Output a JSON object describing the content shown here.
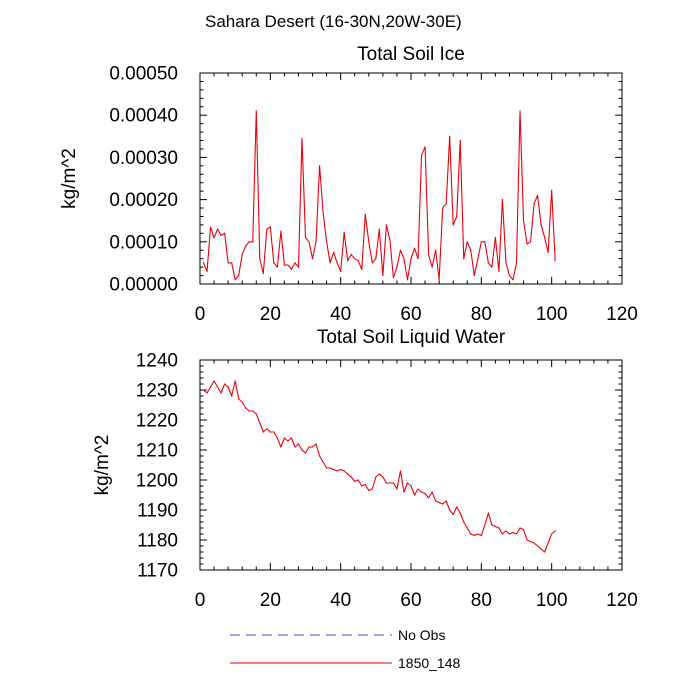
{
  "page_title": "Sahara Desert (16-30N,20W-30E)",
  "colors": {
    "series": "#e8000b",
    "no_obs": "#4a4ad0",
    "axis": "#000000"
  },
  "legend": [
    {
      "label": "No Obs",
      "style": "dashed",
      "color": "#4a4ad0"
    },
    {
      "label": "1850_148",
      "style": "solid",
      "color": "#e8000b"
    }
  ],
  "chart_data": [
    {
      "type": "line",
      "title": "Total Soil Ice",
      "xlabel": "",
      "ylabel": "kg/m^2",
      "xlim": [
        0,
        120
      ],
      "ylim": [
        0,
        0.0005
      ],
      "xticks": [
        0,
        20,
        40,
        60,
        80,
        100,
        120
      ],
      "xtick_labels": [
        "0",
        "20",
        "40",
        "60",
        "80",
        "100",
        "120"
      ],
      "yticks": [
        0,
        0.0001,
        0.0002,
        0.0003,
        0.0004,
        0.0005
      ],
      "ytick_labels": [
        "0.00000",
        "0.00010",
        "0.00020",
        "0.00030",
        "0.00040",
        "0.00050"
      ],
      "grid": false,
      "series": [
        {
          "name": "1850_148",
          "x": [
            1,
            2,
            3,
            4,
            5,
            6,
            7,
            8,
            9,
            10,
            11,
            12,
            13,
            14,
            15,
            16,
            17,
            18,
            19,
            20,
            21,
            22,
            23,
            24,
            25,
            26,
            27,
            28,
            29,
            30,
            31,
            32,
            33,
            34,
            35,
            36,
            37,
            38,
            39,
            40,
            41,
            42,
            43,
            44,
            45,
            46,
            47,
            48,
            49,
            50,
            51,
            52,
            53,
            54,
            55,
            56,
            57,
            58,
            59,
            60,
            61,
            62,
            63,
            64,
            65,
            66,
            67,
            68,
            69,
            70,
            71,
            72,
            73,
            74,
            75,
            76,
            77,
            78,
            79,
            80,
            81,
            82,
            83,
            84,
            85,
            86,
            87,
            88,
            89,
            90,
            91,
            92,
            93,
            94,
            95,
            96,
            97,
            98,
            99,
            100,
            101
          ],
          "y": [
            5e-05,
            3e-05,
            0.000135,
            0.00011,
            0.00013,
            0.000115,
            0.00012,
            5e-05,
            5e-05,
            1e-05,
            2e-05,
            7e-05,
            9e-05,
            0.0001,
            0.0001,
            0.00041,
            6e-05,
            2.5e-05,
            0.00013,
            0.000135,
            5e-05,
            4e-05,
            0.000125,
            4.5e-05,
            4.5e-05,
            3.5e-05,
            5e-05,
            4e-05,
            0.000345,
            0.00011,
            0.0001,
            6e-05,
            0.0001,
            0.00028,
            0.00017,
            0.0001,
            5e-05,
            7.5e-05,
            5e-05,
            3e-05,
            0.000122,
            5.5e-05,
            7e-05,
            6e-05,
            5.5e-05,
            3.5e-05,
            0.000165,
            0.0001,
            5e-05,
            6e-05,
            0.00013,
            2e-05,
            0.00014,
            0.000105,
            1.5e-05,
            4e-05,
            8e-05,
            6e-05,
            1e-05,
            6e-05,
            8.5e-05,
            6e-05,
            0.000305,
            0.000325,
            7e-05,
            4e-05,
            8e-05,
            1e-05,
            0.00018,
            0.00019,
            0.00035,
            0.00014,
            0.00016,
            0.00034,
            6e-05,
            0.0001,
            8e-05,
            2e-05,
            6e-05,
            0.0001,
            0.0001,
            5e-05,
            4e-05,
            0.00011,
            3e-05,
            0.0002,
            5e-05,
            2e-05,
            1e-05,
            5e-05,
            0.00041,
            0.00015,
            9.5e-05,
            0.0001,
            0.00019,
            0.00021,
            0.00014,
            0.00011,
            7.5e-05,
            0.000222,
            5.5e-05
          ]
        }
      ]
    },
    {
      "type": "line",
      "title": "Total Soil Liquid Water",
      "xlabel": "",
      "ylabel": "kg/m^2",
      "xlim": [
        0,
        120
      ],
      "ylim": [
        1170,
        1240
      ],
      "xticks": [
        0,
        20,
        40,
        60,
        80,
        100,
        120
      ],
      "xtick_labels": [
        "0",
        "20",
        "40",
        "60",
        "80",
        "100",
        "120"
      ],
      "yticks": [
        1170,
        1180,
        1190,
        1200,
        1210,
        1220,
        1230,
        1240
      ],
      "ytick_labels": [
        "1170",
        "1180",
        "1190",
        "1200",
        "1210",
        "1220",
        "1230",
        "1240"
      ],
      "grid": false,
      "series": [
        {
          "name": "1850_148",
          "x": [
            1,
            2,
            3,
            4,
            5,
            6,
            7,
            8,
            9,
            10,
            11,
            12,
            13,
            14,
            15,
            16,
            17,
            18,
            19,
            20,
            21,
            22,
            23,
            24,
            25,
            26,
            27,
            28,
            29,
            30,
            31,
            32,
            33,
            34,
            35,
            36,
            37,
            38,
            39,
            40,
            41,
            42,
            43,
            44,
            45,
            46,
            47,
            48,
            49,
            50,
            51,
            52,
            53,
            54,
            55,
            56,
            57,
            58,
            59,
            60,
            61,
            62,
            63,
            64,
            65,
            66,
            67,
            68,
            69,
            70,
            71,
            72,
            73,
            74,
            75,
            76,
            77,
            78,
            79,
            80,
            81,
            82,
            83,
            84,
            85,
            86,
            87,
            88,
            89,
            90,
            91,
            92,
            93,
            94,
            95,
            96,
            97,
            98,
            99,
            100,
            101
          ],
          "y": [
            1230,
            1229,
            1231,
            1233,
            1231,
            1229,
            1232,
            1231,
            1228,
            1233,
            1227,
            1226,
            1224,
            1223,
            1223,
            1222,
            1219,
            1216,
            1217,
            1216,
            1216,
            1214,
            1211,
            1214,
            1213,
            1214,
            1211,
            1212,
            1210,
            1209,
            1211,
            1211,
            1212,
            1208,
            1206,
            1204,
            1204,
            1203.5,
            1203,
            1203.5,
            1203,
            1202,
            1201,
            1199.5,
            1200,
            1198,
            1198.5,
            1196.5,
            1197,
            1201,
            1202,
            1201,
            1199,
            1199,
            1199,
            1197,
            1203,
            1196,
            1199,
            1198,
            1195,
            1197,
            1196,
            1195.5,
            1194,
            1196,
            1193,
            1192.5,
            1192,
            1193,
            1190,
            1188.5,
            1191,
            1189,
            1186,
            1184,
            1182,
            1181.5,
            1182,
            1181.5,
            1185,
            1189,
            1185,
            1184.5,
            1184,
            1182,
            1183,
            1182,
            1182.5,
            1182,
            1184,
            1183.5,
            1180,
            1179.5,
            1179,
            1178,
            1177,
            1176,
            1179,
            1182,
            1183
          ]
        }
      ]
    }
  ]
}
